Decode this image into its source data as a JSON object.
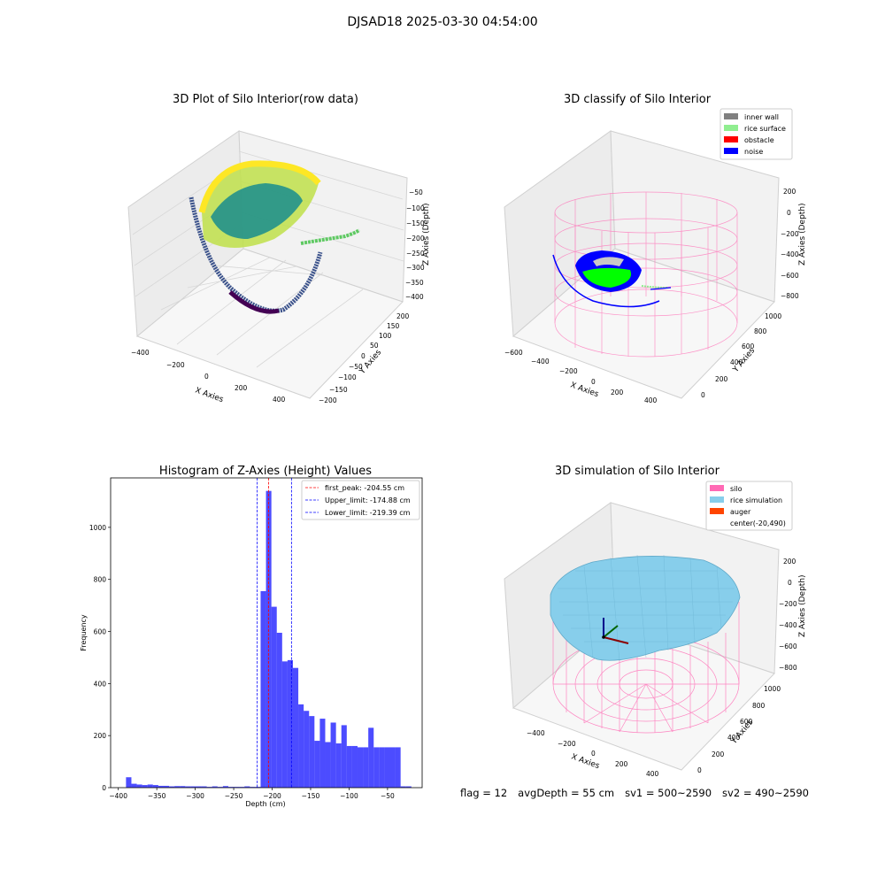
{
  "suptitle": "DJSAD18 2025-03-30 04:54:00",
  "footer": {
    "flag": "flag = 12",
    "avg_depth": "avgDepth = 55 cm",
    "sv1": "sv1 = 500~2590",
    "sv2": "sv2 = 490~2590"
  },
  "panel_raw": {
    "title": "3D Plot of Silo Interior(row data)",
    "xlabel": "X Axies",
    "ylabel": "Y Axies",
    "zlabel": "Z Axies (Depth)",
    "x_ticks": [
      "−400",
      "−200",
      "0",
      "200",
      "400"
    ],
    "y_ticks": [
      "−200",
      "−150",
      "−100",
      "−50",
      "0",
      "50",
      "100",
      "150",
      "200"
    ],
    "z_ticks": [
      "−50",
      "−100",
      "−150",
      "−200",
      "−250",
      "−300",
      "−350",
      "−400"
    ],
    "colormap": [
      "#440154",
      "#3b528b",
      "#21918c",
      "#5ec962",
      "#fde725"
    ]
  },
  "panel_classify": {
    "title": "3D classify of Silo Interior",
    "xlabel": "X Axies",
    "ylabel": "Y Axies",
    "zlabel": "Z Axies (Depth)",
    "x_ticks": [
      "−600",
      "−400",
      "−200",
      "0",
      "200",
      "400"
    ],
    "y_ticks": [
      "0",
      "200",
      "400",
      "600",
      "800",
      "1000"
    ],
    "z_ticks": [
      "200",
      "0",
      "−200",
      "−400",
      "−600",
      "−800"
    ],
    "legend": [
      {
        "label": "inner wall",
        "color": "#808080"
      },
      {
        "label": "rice surface",
        "color": "#90ee90"
      },
      {
        "label": "obstacle",
        "color": "#ff0000"
      },
      {
        "label": "noise",
        "color": "#0000ff"
      }
    ]
  },
  "panel_sim": {
    "title": "3D simulation of Silo Interior",
    "xlabel": "X Axies",
    "ylabel": "Y Axies",
    "zlabel": "Z Axies (Depth)",
    "x_ticks": [
      "−400",
      "−200",
      "0",
      "200",
      "400"
    ],
    "y_ticks": [
      "0",
      "200",
      "400",
      "600",
      "800",
      "1000"
    ],
    "z_ticks": [
      "200",
      "0",
      "−200",
      "−400",
      "−600",
      "−800"
    ],
    "legend": [
      {
        "label": "silo",
        "color": "#ff69b4"
      },
      {
        "label": "rice simulation",
        "color": "#87ceeb"
      },
      {
        "label": "auger",
        "color": "#ff4500"
      },
      {
        "label": "center(-20,490)",
        "color": ""
      }
    ]
  },
  "chart_data": {
    "type": "bar",
    "title": "Histogram of Z-Axies (Height) Values",
    "xlabel": "Depth (cm)",
    "ylabel": "Frequency",
    "xlim": [
      -410,
      -5
    ],
    "ylim": [
      0,
      1190
    ],
    "x_ticks": [
      -400,
      -350,
      -300,
      -250,
      -200,
      -150,
      -100,
      -50
    ],
    "y_ticks": [
      0,
      200,
      400,
      600,
      800,
      1000
    ],
    "bar_color": "#0000ff",
    "bins": [
      {
        "x0": -390,
        "x1": -383,
        "count": 40
      },
      {
        "x0": -383,
        "x1": -376,
        "count": 15
      },
      {
        "x0": -376,
        "x1": -369,
        "count": 12
      },
      {
        "x0": -369,
        "x1": -362,
        "count": 10
      },
      {
        "x0": -362,
        "x1": -355,
        "count": 12
      },
      {
        "x0": -355,
        "x1": -348,
        "count": 10
      },
      {
        "x0": -348,
        "x1": -341,
        "count": 7
      },
      {
        "x0": -341,
        "x1": -334,
        "count": 7
      },
      {
        "x0": -334,
        "x1": -327,
        "count": 5
      },
      {
        "x0": -327,
        "x1": -320,
        "count": 6
      },
      {
        "x0": -320,
        "x1": -313,
        "count": 6
      },
      {
        "x0": -313,
        "x1": -306,
        "count": 5
      },
      {
        "x0": -306,
        "x1": -299,
        "count": 5
      },
      {
        "x0": -299,
        "x1": -292,
        "count": 5
      },
      {
        "x0": -292,
        "x1": -285,
        "count": 5
      },
      {
        "x0": -285,
        "x1": -278,
        "count": 3
      },
      {
        "x0": -278,
        "x1": -271,
        "count": 5
      },
      {
        "x0": -271,
        "x1": -264,
        "count": 3
      },
      {
        "x0": -264,
        "x1": -257,
        "count": 6
      },
      {
        "x0": -257,
        "x1": -250,
        "count": 3
      },
      {
        "x0": -250,
        "x1": -243,
        "count": 3
      },
      {
        "x0": -243,
        "x1": -236,
        "count": 3
      },
      {
        "x0": -236,
        "x1": -229,
        "count": 5
      },
      {
        "x0": -229,
        "x1": -222,
        "count": 3
      },
      {
        "x0": -222,
        "x1": -215,
        "count": 3
      },
      {
        "x0": -215,
        "x1": -208,
        "count": 755
      },
      {
        "x0": -208,
        "x1": -201,
        "count": 1140
      },
      {
        "x0": -201,
        "x1": -194,
        "count": 695
      },
      {
        "x0": -194,
        "x1": -187,
        "count": 595
      },
      {
        "x0": -187,
        "x1": -180,
        "count": 485
      },
      {
        "x0": -180,
        "x1": -173,
        "count": 490
      },
      {
        "x0": -173,
        "x1": -166,
        "count": 460
      },
      {
        "x0": -166,
        "x1": -159,
        "count": 320
      },
      {
        "x0": -159,
        "x1": -152,
        "count": 295
      },
      {
        "x0": -152,
        "x1": -145,
        "count": 275
      },
      {
        "x0": -145,
        "x1": -138,
        "count": 180
      },
      {
        "x0": -138,
        "x1": -131,
        "count": 265
      },
      {
        "x0": -131,
        "x1": -124,
        "count": 175
      },
      {
        "x0": -124,
        "x1": -117,
        "count": 250
      },
      {
        "x0": -117,
        "x1": -110,
        "count": 170
      },
      {
        "x0": -110,
        "x1": -103,
        "count": 240
      },
      {
        "x0": -103,
        "x1": -96,
        "count": 160
      },
      {
        "x0": -96,
        "x1": -89,
        "count": 160
      },
      {
        "x0": -89,
        "x1": -82,
        "count": 155
      },
      {
        "x0": -82,
        "x1": -75,
        "count": 155
      },
      {
        "x0": -75,
        "x1": -68,
        "count": 230
      },
      {
        "x0": -68,
        "x1": -61,
        "count": 155
      },
      {
        "x0": -61,
        "x1": -54,
        "count": 155
      },
      {
        "x0": -54,
        "x1": -47,
        "count": 155
      },
      {
        "x0": -47,
        "x1": -40,
        "count": 155
      },
      {
        "x0": -40,
        "x1": -33,
        "count": 155
      },
      {
        "x0": -33,
        "x1": -26,
        "count": 5
      },
      {
        "x0": -26,
        "x1": -19,
        "count": 5
      }
    ],
    "vlines": [
      {
        "label": "first_peak: -204.55 cm",
        "x": -204.55,
        "color": "#ff0000"
      },
      {
        "label": "Upper_limit: -174.88 cm",
        "x": -174.88,
        "color": "#0000ff"
      },
      {
        "label": "Lower_limit: -219.39 cm",
        "x": -219.39,
        "color": "#0000ff"
      }
    ]
  }
}
